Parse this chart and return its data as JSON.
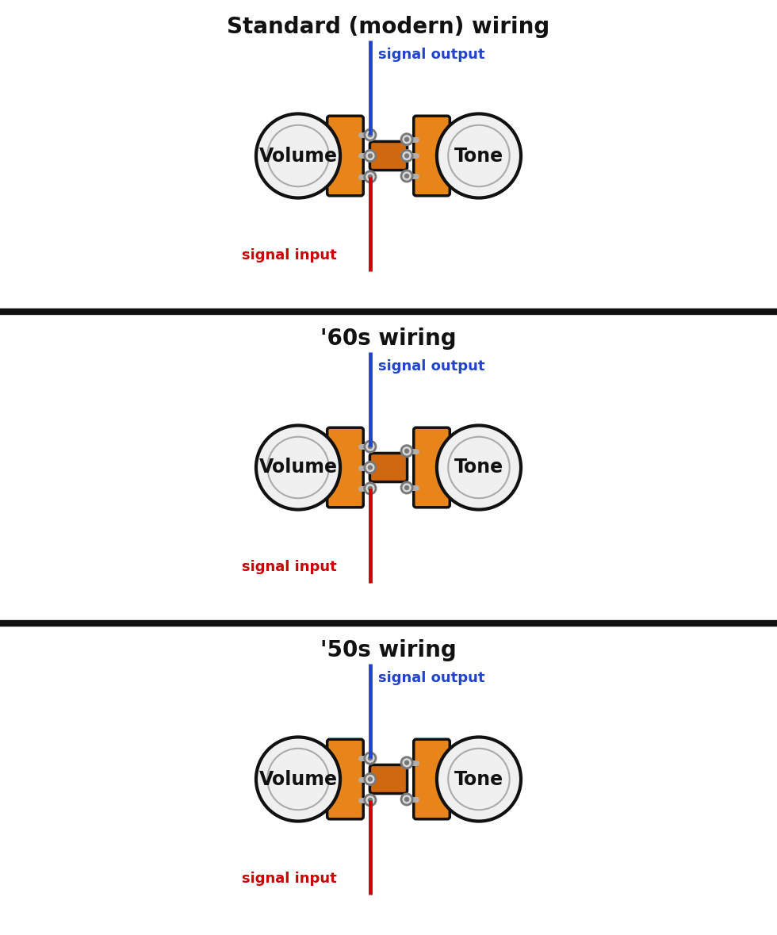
{
  "title_top": "Standard (modern) wiring",
  "title_mid": "'60s wiring",
  "title_bot": "'50s wiring",
  "bg_color": "#ffffff",
  "orange": "#E8851A",
  "orange_dark": "#D06810",
  "gray_light": "#d8d8d8",
  "gray_mid": "#b0b0b0",
  "gray_dark": "#787878",
  "black": "#111111",
  "white_knob": "#f0f0f0",
  "blue": "#2244cc",
  "red": "#cc0000",
  "title_fontsize": 20,
  "label_fontsize": 13,
  "pot_label_fontsize": 17
}
